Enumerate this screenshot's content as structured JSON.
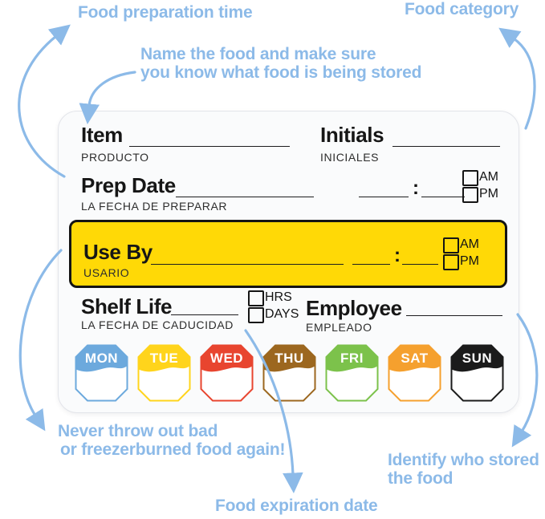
{
  "annotations": {
    "prep_time": "Food preparation time",
    "category": "Food category",
    "name_food_line1": "Name the food and make sure",
    "name_food_line2": "you know what food is being stored",
    "never_line1": "Never throw out bad",
    "never_line2": "or freezerburned food again!",
    "identify_line1": "Identify who stored",
    "identify_line2": "the food",
    "expiration": "Food expiration date"
  },
  "label": {
    "item": {
      "en": "Item",
      "es": "PRODUCTO"
    },
    "initials": {
      "en": "Initials",
      "es": "INICIALES"
    },
    "prep_date": {
      "en": "Prep Date",
      "es": "LA FECHA DE PREPARAR"
    },
    "use_by": {
      "en": "Use By",
      "es": "USARIO"
    },
    "shelf_life": {
      "en": "Shelf Life",
      "es": "LA FECHA DE CADUCIDAD"
    },
    "employee": {
      "en": "Employee",
      "es": "EMPLEADO"
    },
    "am": "AM",
    "pm": "PM",
    "hrs": "HRS",
    "days": "DAYS",
    "time_colon": ":",
    "use_by_bg": "#FFD906",
    "days_of_week": [
      {
        "label": "MON",
        "color": "#6CA9DD"
      },
      {
        "label": "TUE",
        "color": "#FFD41C"
      },
      {
        "label": "WED",
        "color": "#E8452F"
      },
      {
        "label": "THU",
        "color": "#9C671F"
      },
      {
        "label": "FRI",
        "color": "#7CC24B"
      },
      {
        "label": "SAT",
        "color": "#F5A02E"
      },
      {
        "label": "SUN",
        "color": "#1B1B1B"
      }
    ]
  },
  "colors": {
    "annotation_blue": "#8CBAE8",
    "label_text": "#161616"
  }
}
